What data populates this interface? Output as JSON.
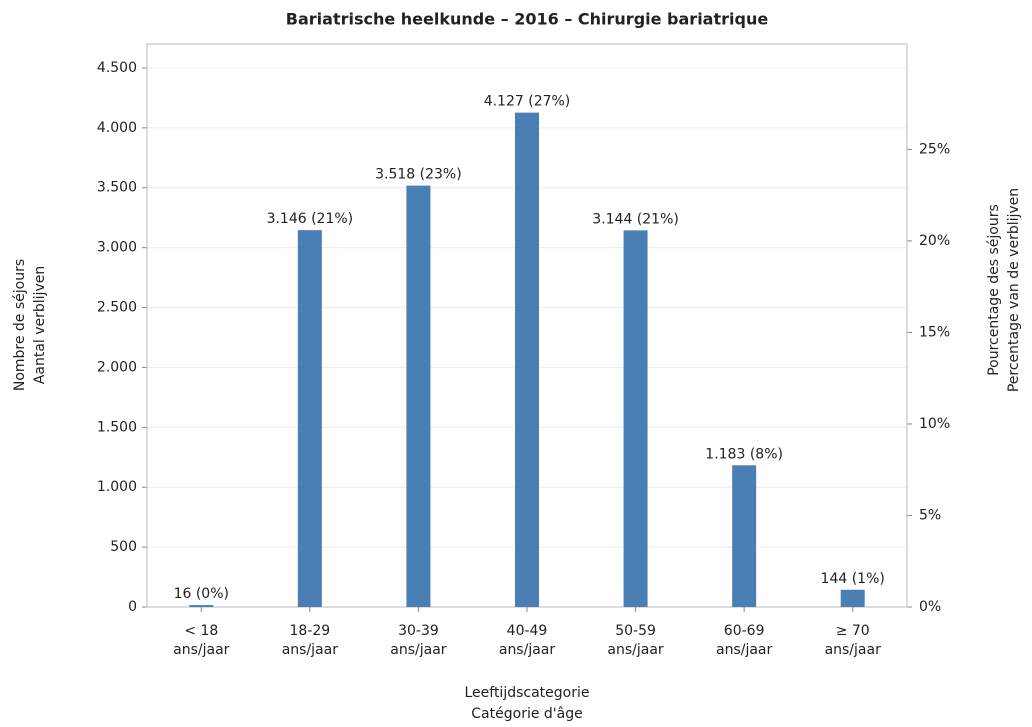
{
  "chart_data": {
    "type": "bar",
    "title": "Bariatrische heelkunde – 2016 – Chirurgie bariatrique",
    "categories": [
      "< 18\nans/jaar",
      "18-29\nans/jaar",
      "30-39\nans/jaar",
      "40-49\nans/jaar",
      "50-59\nans/jaar",
      "60-69\nans/jaar",
      "≥ 70\nans/jaar"
    ],
    "values": [
      16,
      3146,
      3518,
      4127,
      3144,
      1183,
      144
    ],
    "value_labels": [
      "16 (0%)",
      "3.146 (21%)",
      "3.518 (23%)",
      "4.127 (27%)",
      "3.144 (21%)",
      "1.183 (8%)",
      "144 (1%)"
    ],
    "color": "#4a7fb5",
    "ylim": [
      0,
      4700
    ],
    "yticks": [
      0,
      {
        "value": 500,
        "label": "500"
      },
      {
        "value": 1000,
        "label": "1.000"
      },
      {
        "value": 1500,
        "label": "1.500"
      },
      {
        "value": 2000,
        "label": "2.000"
      },
      {
        "value": 2500,
        "label": "2.500"
      },
      {
        "value": 3000,
        "label": "3.000"
      },
      {
        "value": 3500,
        "label": "3.500"
      },
      {
        "value": 4000,
        "label": "4.000"
      },
      {
        "value": 4500,
        "label": "4.500"
      }
    ],
    "y2lim": [
      0,
      30.76
    ],
    "y2ticks": [
      {
        "value": 0,
        "label": "0%"
      },
      {
        "value": 5,
        "label": "5%"
      },
      {
        "value": 10,
        "label": "10%"
      },
      {
        "value": 15,
        "label": "15%"
      },
      {
        "value": 20,
        "label": "20%"
      },
      {
        "value": 25,
        "label": "25%"
      }
    ],
    "y_label": [
      "Nombre de séjours",
      "Aantal verblijven"
    ],
    "y2_label": [
      "Pourcentage des séjours",
      "Percentage van de verblijven"
    ],
    "x_label": [
      "Leeftijdscategorie",
      "Catégorie d'âge"
    ],
    "grid": true
  }
}
